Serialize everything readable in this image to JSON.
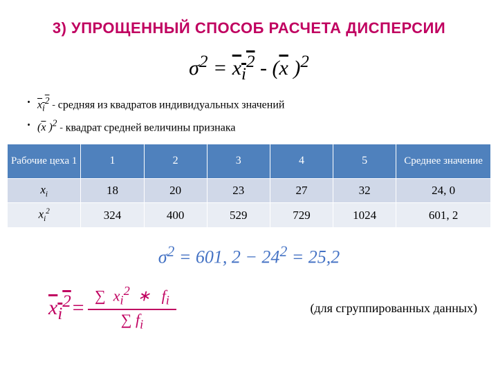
{
  "title": {
    "num": "3)",
    "text": "УПРОЩЕННЫЙ СПОСОБ РАСЧЕТА ДИСПЕРСИИ"
  },
  "main_formula_html": "<span>σ</span><sup>2</sup> = <span class='overline'>x<sub>i</sub><sup>2</sup></span> - (<span class='overline'>x</span> )<sup>2</sup>",
  "bullet1_math_html": "<span class='overline'>x<sub>i</sub><sup>2</sup></span>",
  "bullet1_text": " - средняя из квадратов индивидуальных значений",
  "bullet2_math_html": "(<span class='overline'>x</span> )<sup>2</sup>",
  "bullet2_text": " - квадрат средней величины признака",
  "table": {
    "headers": [
      "Рабочие цеха 1",
      "1",
      "2",
      "3",
      "4",
      "5",
      "Среднее значение"
    ],
    "row1_label_html": "x<span class='sub'>i</span>",
    "row1": [
      "18",
      "20",
      "23",
      "27",
      "32",
      "24, 0"
    ],
    "row2_label_html": "x<span class='sub'>i</span><span class='sup'>2</span>",
    "row2": [
      "324",
      "400",
      "529",
      "729",
      "1024",
      "601, 2"
    ]
  },
  "calc_formula_html": "σ<sup>2</sup> = 601, 2 − 24<sup>2</sup> = 25,2",
  "grouped_lhs_html": "<span class='overline'>x<sub>i</sub><sup>2</sup></span>=",
  "grouped_num_html": "∑ &nbsp;x<sub>i</sub><sup>2</sup>&nbsp; ∗ &nbsp;&nbsp;f<sub>i</sub>",
  "grouped_den_html": "∑ f<sub>i</sub>",
  "grouped_note": "(для сгруппированных данных)",
  "colors": {
    "title": "#c00060",
    "table_header_bg": "#4f81bd",
    "row1_bg": "#d0d8e8",
    "row2_bg": "#e9edf4",
    "calc_color": "#4472c4",
    "grouped_color": "#c00060"
  }
}
